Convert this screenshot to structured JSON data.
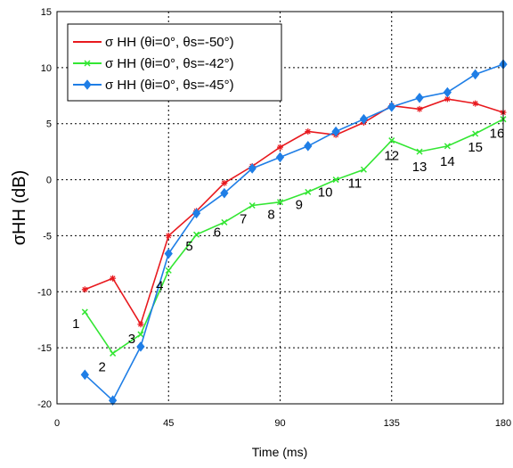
{
  "chart_data": {
    "type": "line",
    "xlabel": "Time (ms)",
    "ylabel": "σHH (dB)",
    "xlim": [
      0,
      180
    ],
    "ylim": [
      -20,
      15
    ],
    "xticks": [
      0,
      45,
      90,
      135,
      180
    ],
    "yticks": [
      -20,
      -15,
      -10,
      -5,
      0,
      5,
      10,
      15
    ],
    "grid": true,
    "legend_position": "top-left",
    "x": [
      11.25,
      22.5,
      33.75,
      45,
      56.25,
      67.5,
      78.75,
      90,
      101.25,
      112.5,
      123.75,
      135,
      146.25,
      157.5,
      168.75,
      180
    ],
    "series": [
      {
        "name": "σ HH (θi=0°, θs=-50°)",
        "color": "#e8191e",
        "marker": "star",
        "values": [
          -9.8,
          -8.8,
          -12.9,
          -5.0,
          -2.8,
          -0.3,
          1.2,
          2.9,
          4.3,
          4.0,
          5.1,
          6.6,
          6.3,
          7.2,
          6.8,
          6.0
        ]
      },
      {
        "name": "σ HH (θi=0°, θs=-42°)",
        "color": "#33e633",
        "marker": "x",
        "values": [
          -11.8,
          -15.5,
          -13.8,
          -8.1,
          -4.9,
          -3.8,
          -2.3,
          -2.0,
          -1.1,
          0.0,
          0.9,
          3.5,
          2.5,
          3.0,
          4.1,
          5.4
        ]
      },
      {
        "name": "σ HH (θi=0°, θs=-45°)",
        "color": "#1f7ee6",
        "marker": "diamond-star",
        "values": [
          -17.4,
          -19.7,
          -14.9,
          -6.6,
          -3.0,
          -1.2,
          1.0,
          2.0,
          3.0,
          4.3,
          5.4,
          6.5,
          7.3,
          7.8,
          9.4,
          10.3
        ]
      }
    ],
    "annotations": [
      "1",
      "2",
      "3",
      "4",
      "5",
      "6",
      "7",
      "8",
      "9",
      "10",
      "11",
      "12",
      "13",
      "14",
      "15",
      "16"
    ]
  }
}
